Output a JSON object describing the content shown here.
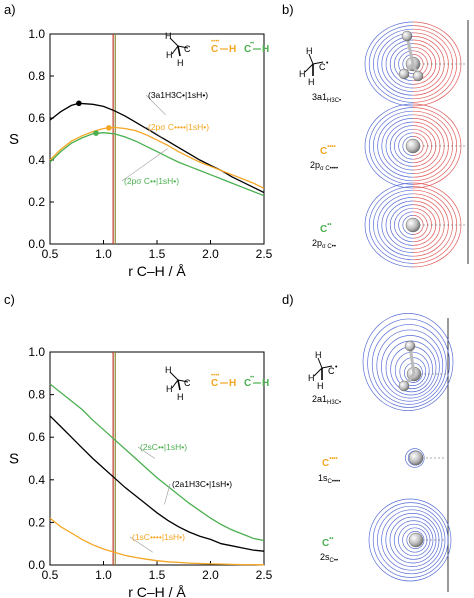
{
  "panel_labels": {
    "a": "a)",
    "b": "b)",
    "c": "c)",
    "d": "d)"
  },
  "colors": {
    "black": "#000000",
    "orange": "#f5a623",
    "green": "#4caf50",
    "brown": "#a0522d",
    "blue": "#5b6fd6",
    "red": "#e05a5a"
  },
  "legend_icons": {
    "ch3": {
      "c": "C",
      "h": "H",
      "superscript": "•"
    },
    "c_orange": {
      "c": "C",
      "h": "H",
      "superscript": "••••"
    },
    "c_green": {
      "c": "C",
      "h": "H",
      "superscript": "••"
    }
  },
  "orbital_labels": {
    "b": [
      {
        "species": "C",
        "species_sup": "•",
        "name": "3a1",
        "name_sub": "H3C•"
      },
      {
        "species": "C",
        "species_sup": "••••",
        "name": "2p",
        "name_sub": "σ C••••"
      },
      {
        "species": "C",
        "species_sup": "••",
        "name": "2p",
        "name_sub": "σ C••"
      }
    ],
    "d": [
      {
        "species": "C",
        "species_sup": "•",
        "name": "2a1",
        "name_sub": "H3C•"
      },
      {
        "species": "C",
        "species_sup": "••••",
        "name": "1s",
        "name_sub": "C••••"
      },
      {
        "species": "C",
        "species_sup": "••",
        "name": "2s",
        "name_sub": "C••"
      }
    ]
  },
  "chart_data": [
    {
      "type": "line",
      "panel": "a",
      "xlabel": "r C–H / Å",
      "ylabel": "S",
      "xlim": [
        0.5,
        2.5
      ],
      "ylim": [
        0.0,
        1.0
      ],
      "x_ticks": [
        "0.5",
        "1.0",
        "1.5",
        "2.0",
        "2.5"
      ],
      "y_ticks": [
        "0.0",
        "0.2",
        "0.4",
        "0.6",
        "0.8",
        "1.0"
      ],
      "vertical_lines": [
        1.09,
        1.11
      ],
      "series": [
        {
          "name": "(3a1H3C•|1sH•)",
          "color": "#000000",
          "x": [
            0.5,
            0.6,
            0.7,
            0.77,
            0.9,
            1.0,
            1.1,
            1.2,
            1.3,
            1.4,
            1.5,
            1.6,
            1.7,
            1.8,
            1.9,
            2.0,
            2.1,
            2.2,
            2.3,
            2.4,
            2.5
          ],
          "y": [
            0.59,
            0.63,
            0.66,
            0.67,
            0.665,
            0.655,
            0.635,
            0.61,
            0.58,
            0.55,
            0.52,
            0.49,
            0.46,
            0.43,
            0.4,
            0.375,
            0.35,
            0.32,
            0.295,
            0.27,
            0.245
          ],
          "marker_x": 0.77,
          "marker_y": 0.67
        },
        {
          "name": "(2pσ C••••|1sH•)",
          "color": "#f5a623",
          "x": [
            0.5,
            0.6,
            0.7,
            0.8,
            0.9,
            1.0,
            1.1,
            1.2,
            1.3,
            1.4,
            1.5,
            1.6,
            1.7,
            1.8,
            1.9,
            2.0,
            2.1,
            2.2,
            2.3,
            2.4,
            2.5
          ],
          "y": [
            0.4,
            0.45,
            0.49,
            0.515,
            0.535,
            0.55,
            0.555,
            0.55,
            0.54,
            0.52,
            0.495,
            0.47,
            0.44,
            0.415,
            0.39,
            0.37,
            0.35,
            0.33,
            0.31,
            0.29,
            0.265
          ],
          "marker_x": 1.05,
          "marker_y": 0.553
        },
        {
          "name": "(2pσ C••|1sH•)",
          "color": "#4caf50",
          "x": [
            0.5,
            0.6,
            0.7,
            0.8,
            0.9,
            1.0,
            1.1,
            1.2,
            1.3,
            1.4,
            1.5,
            1.6,
            1.7,
            1.8,
            1.9,
            2.0,
            2.1,
            2.2,
            2.3,
            2.4,
            2.5
          ],
          "y": [
            0.39,
            0.44,
            0.48,
            0.505,
            0.525,
            0.53,
            0.525,
            0.51,
            0.49,
            0.465,
            0.44,
            0.415,
            0.39,
            0.37,
            0.35,
            0.33,
            0.31,
            0.29,
            0.27,
            0.25,
            0.23
          ],
          "marker_x": 0.93,
          "marker_y": 0.528
        }
      ]
    },
    {
      "type": "line",
      "panel": "c",
      "xlabel": "r C–H / Å",
      "ylabel": "S",
      "xlim": [
        0.5,
        2.5
      ],
      "ylim": [
        0.0,
        1.0
      ],
      "x_ticks": [
        "0.5",
        "1.0",
        "1.5",
        "2.0",
        "2.5"
      ],
      "y_ticks": [
        "0.0",
        "0.2",
        "0.4",
        "0.6",
        "0.8",
        "1.0"
      ],
      "vertical_lines": [
        1.09,
        1.11
      ],
      "series": [
        {
          "name": "(2sC••|1sH•)",
          "color": "#4caf50",
          "x": [
            0.5,
            0.6,
            0.7,
            0.8,
            0.9,
            1.0,
            1.1,
            1.2,
            1.3,
            1.4,
            1.5,
            1.6,
            1.7,
            1.8,
            1.9,
            2.0,
            2.1,
            2.2,
            2.3,
            2.4,
            2.5
          ],
          "y": [
            0.85,
            0.81,
            0.77,
            0.73,
            0.68,
            0.635,
            0.59,
            0.545,
            0.5,
            0.455,
            0.41,
            0.37,
            0.33,
            0.29,
            0.255,
            0.22,
            0.19,
            0.165,
            0.145,
            0.125,
            0.115
          ]
        },
        {
          "name": "(2a1H3C•|1sH•)",
          "color": "#000000",
          "x": [
            0.5,
            0.6,
            0.7,
            0.8,
            0.9,
            1.0,
            1.1,
            1.2,
            1.3,
            1.4,
            1.5,
            1.6,
            1.7,
            1.8,
            1.9,
            2.0,
            2.1,
            2.2,
            2.3,
            2.4,
            2.5
          ],
          "y": [
            0.7,
            0.65,
            0.6,
            0.55,
            0.5,
            0.455,
            0.41,
            0.365,
            0.325,
            0.285,
            0.245,
            0.21,
            0.18,
            0.155,
            0.135,
            0.12,
            0.1,
            0.09,
            0.08,
            0.07,
            0.065
          ]
        },
        {
          "name": "(1sC••••|1sH•)",
          "color": "#f5a623",
          "x": [
            0.5,
            0.6,
            0.7,
            0.8,
            0.9,
            1.0,
            1.1,
            1.2,
            1.3,
            1.4,
            1.5,
            1.6,
            1.7,
            1.8,
            1.9,
            2.0,
            2.1,
            2.2,
            2.3,
            2.4,
            2.5
          ],
          "y": [
            0.22,
            0.18,
            0.15,
            0.12,
            0.095,
            0.075,
            0.06,
            0.045,
            0.035,
            0.027,
            0.02,
            0.015,
            0.012,
            0.009,
            0.007,
            0.005,
            0.004,
            0.003,
            0.002,
            0.002,
            0.001
          ]
        }
      ]
    }
  ]
}
